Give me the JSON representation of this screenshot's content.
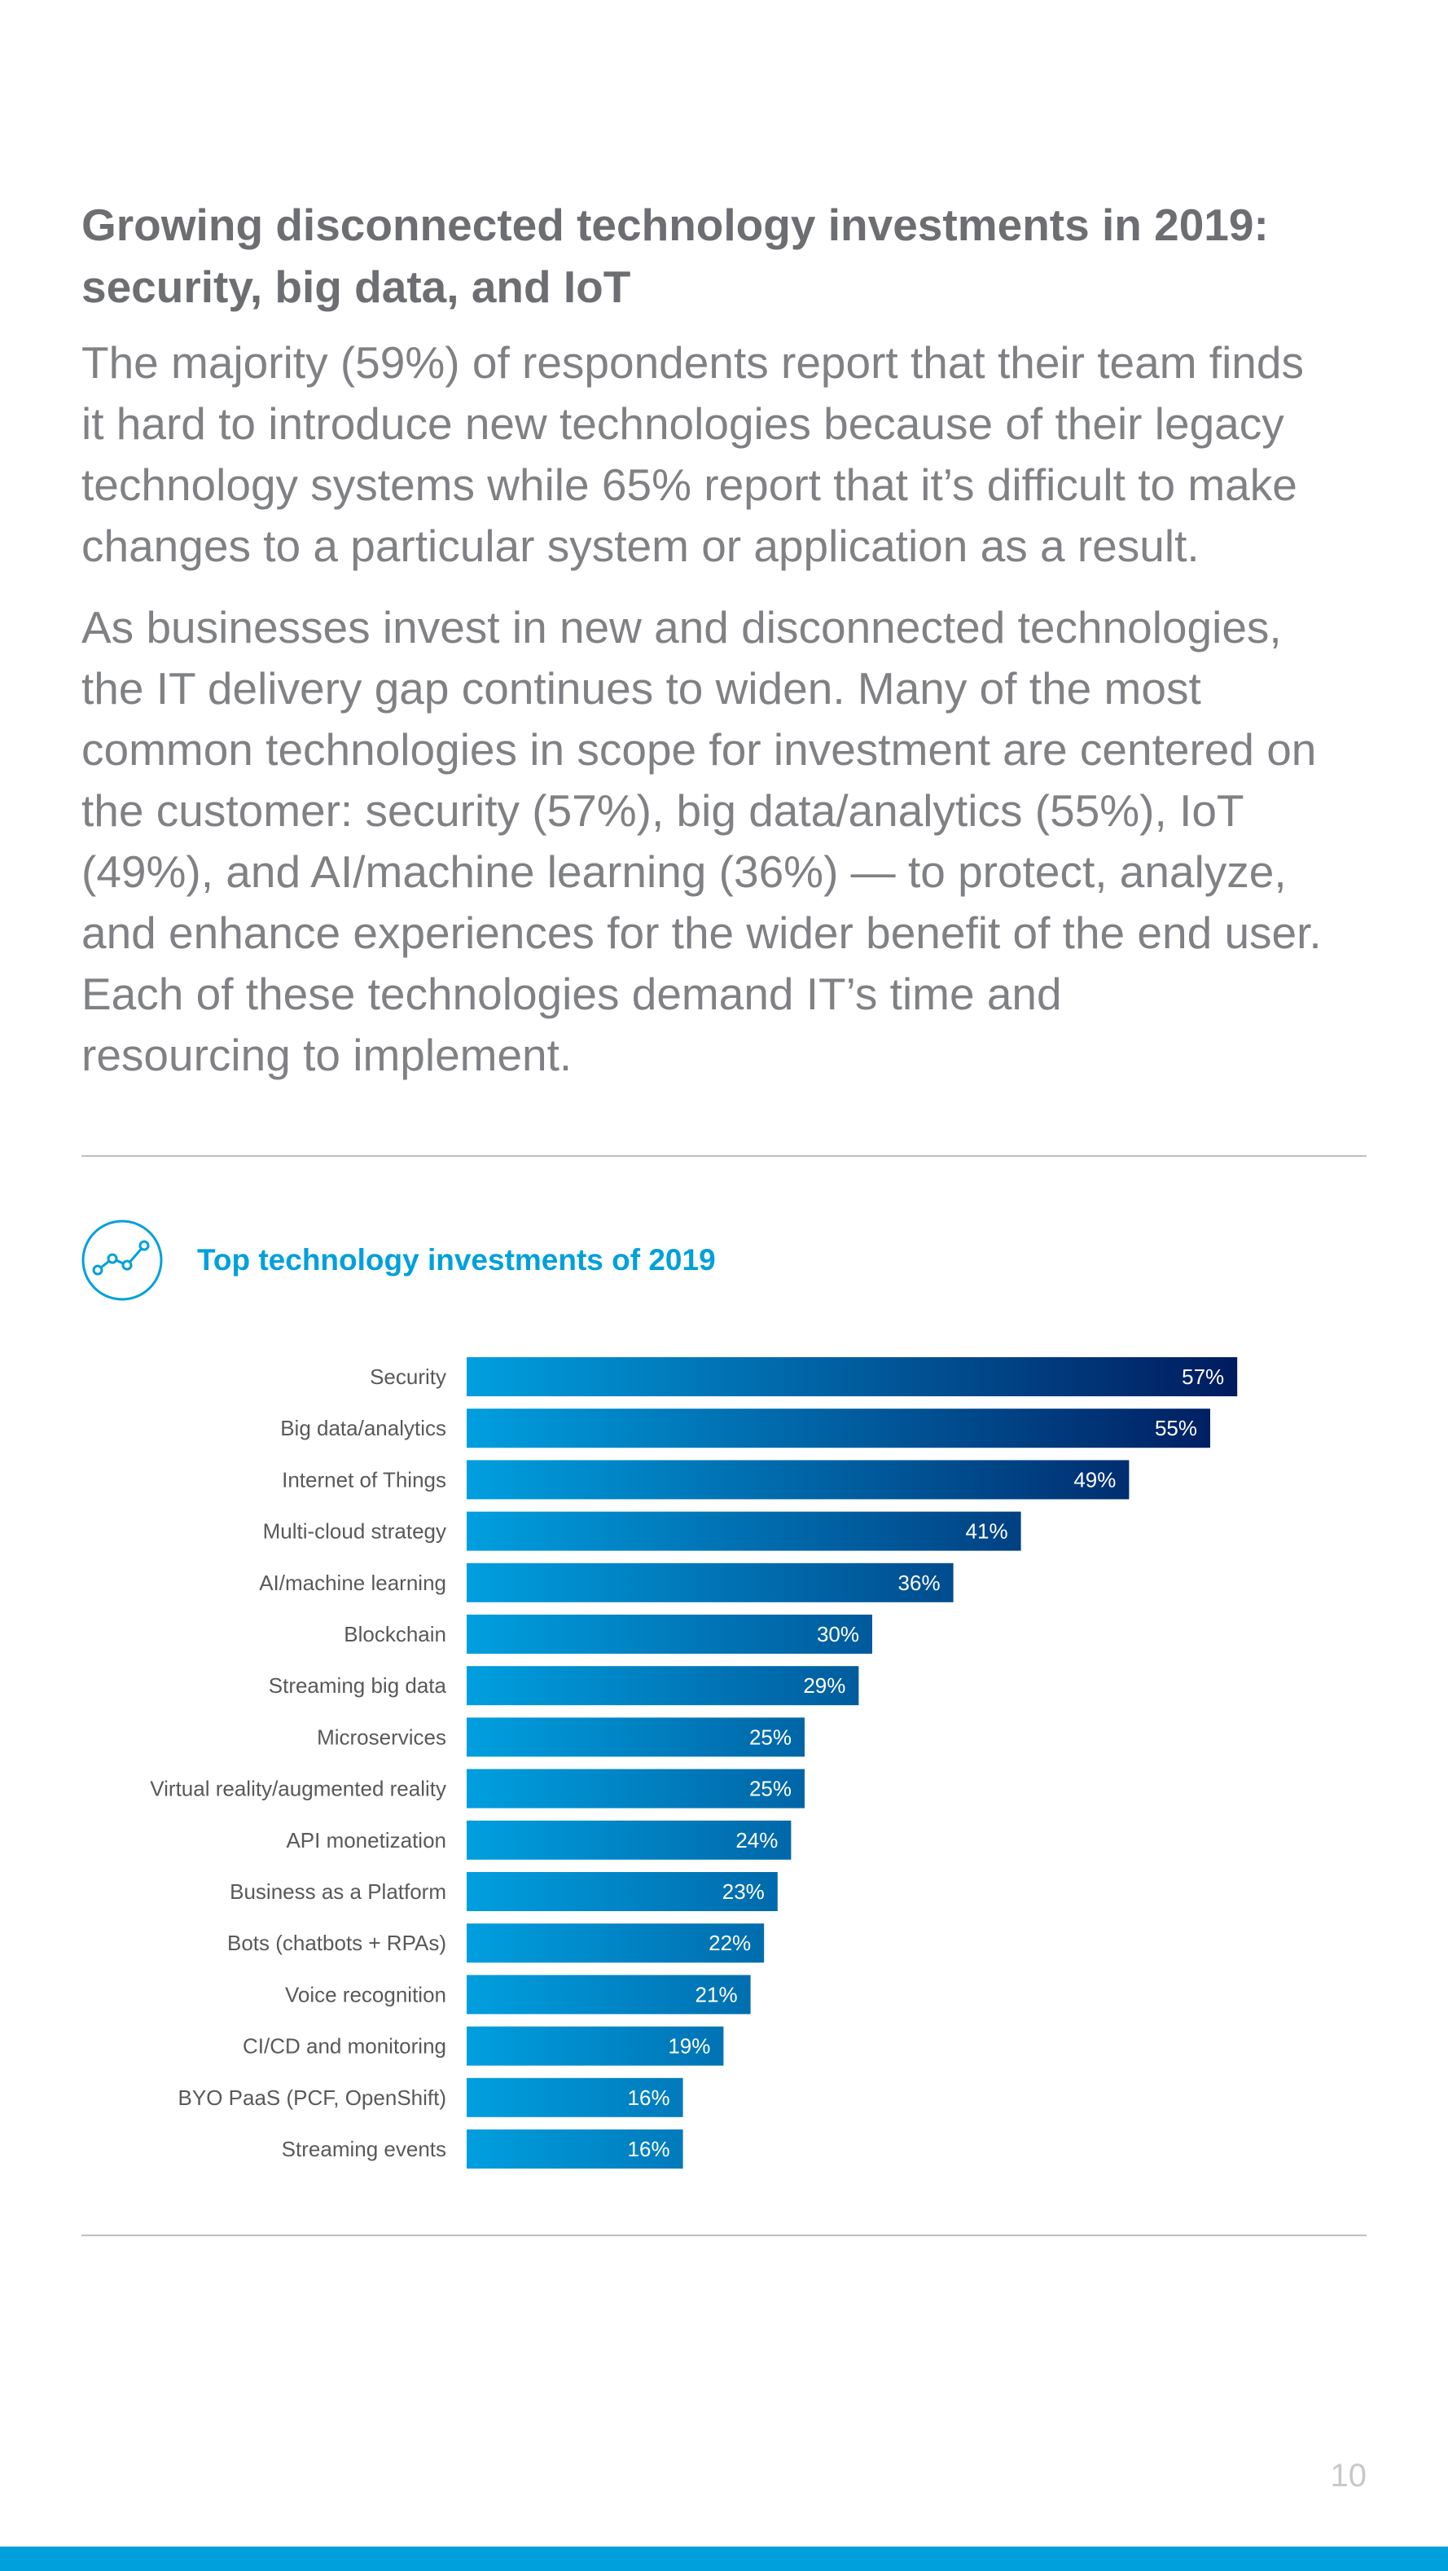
{
  "page": {
    "heading_line1": "Growing disconnected technology investments in 2019:",
    "heading_line2": "security, big data, and IoT",
    "paragraph1": [
      "The majority (59%) of respondents report that their team finds",
      "it hard to introduce new technologies because of their legacy",
      "technology systems while 65% report that it’s difficult to make",
      "changes to a particular system or application as a result."
    ],
    "paragraph2": [
      "As businesses invest in new and disconnected technologies,",
      "the IT delivery gap continues to widen. Many of the most",
      "common technologies in scope for investment are centered on",
      "the customer: security (57%), big data/analytics (55%), IoT",
      "(49%), and AI/machine learning (36%) — to protect, analyze,",
      "and enhance experiences for the wider benefit of the end user.",
      "Each of these technologies demand IT’s time and",
      "resourcing to implement."
    ],
    "page_number": "10"
  },
  "icons": {
    "chart": "line-chart-icon"
  },
  "colors": {
    "accent": "#00a0dc",
    "bar_start": "#009fdf",
    "bar_end": "#001b5e",
    "heading": "#6d6e71",
    "body_text": "#808184",
    "label_text": "#58595b",
    "rule": "#bdbec0"
  },
  "chart_data": {
    "type": "bar",
    "orientation": "horizontal",
    "title": "Top technology investments of 2019",
    "xlabel": "",
    "ylabel": "",
    "xlim": [
      0,
      100
    ],
    "unit": "%",
    "categories": [
      "Security",
      "Big data/analytics",
      "Internet of Things",
      "Multi-cloud strategy",
      "AI/machine learning",
      "Blockchain",
      "Streaming big data",
      "Microservices",
      "Virtual reality/augmented reality",
      "API monetization",
      "Business as a Platform",
      "Bots (chatbots + RPAs)",
      "Voice recognition",
      "CI/CD and monitoring",
      "BYO PaaS (PCF, OpenShift)",
      "Streaming events"
    ],
    "values": [
      57,
      55,
      49,
      41,
      36,
      30,
      29,
      25,
      25,
      24,
      23,
      22,
      21,
      19,
      16,
      16
    ],
    "value_labels": [
      "57%",
      "55%",
      "49%",
      "41%",
      "36%",
      "30%",
      "29%",
      "25%",
      "25%",
      "24%",
      "23%",
      "22%",
      "21%",
      "19%",
      "16%",
      "16%"
    ]
  }
}
